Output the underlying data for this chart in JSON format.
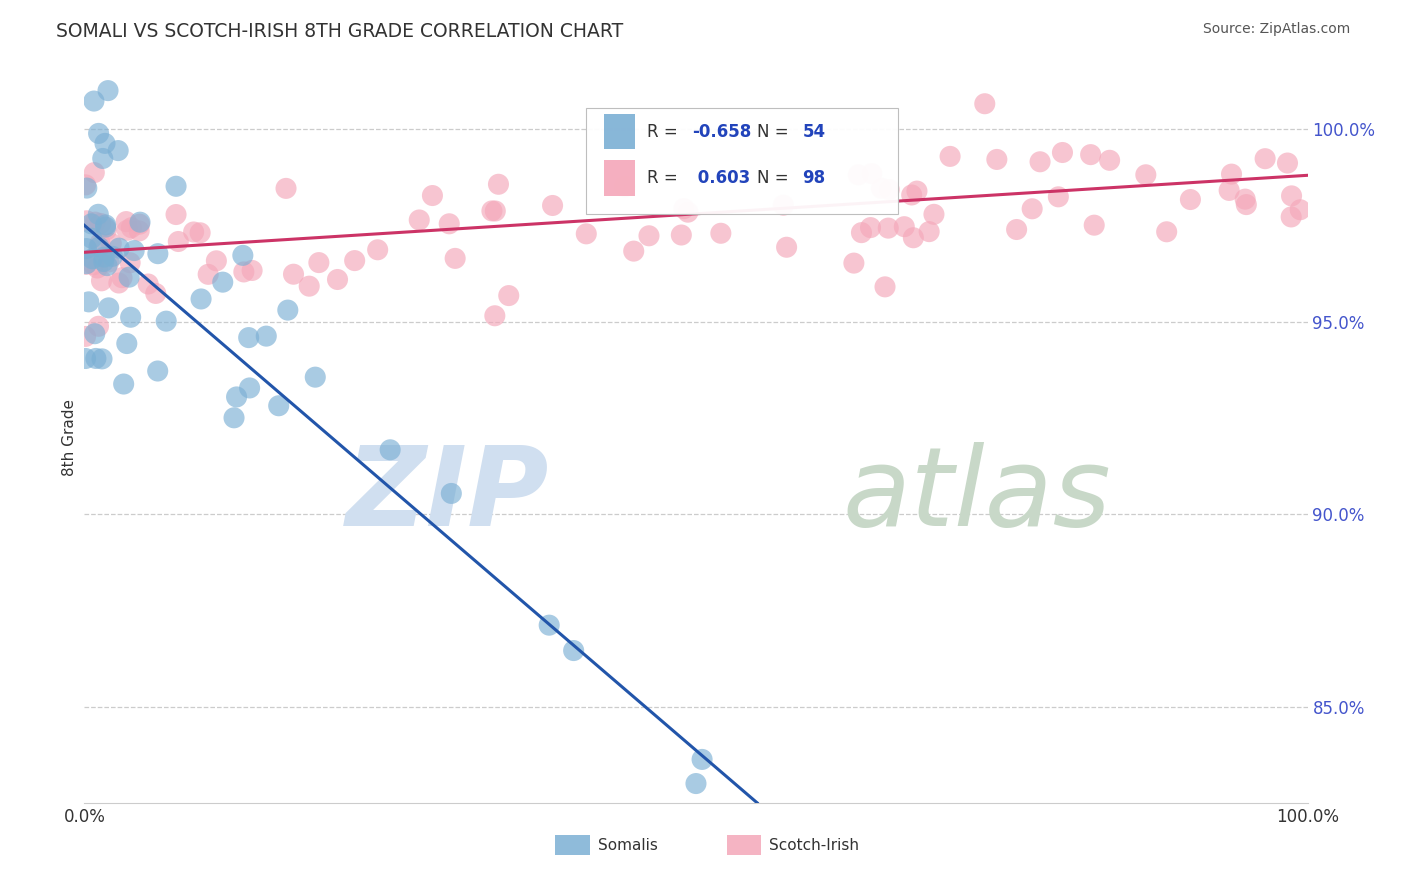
{
  "title": "SOMALI VS SCOTCH-IRISH 8TH GRADE CORRELATION CHART",
  "source": "Source: ZipAtlas.com",
  "ylabel": "8th Grade",
  "ytick_vals": [
    85.0,
    90.0,
    95.0,
    100.0
  ],
  "ytick_labels": [
    "85.0%",
    "90.0%",
    "95.0%",
    "100.0%"
  ],
  "xlim": [
    0.0,
    100.0
  ],
  "ylim": [
    82.5,
    101.5
  ],
  "somali_R": -0.658,
  "somali_N": 54,
  "scotch_irish_R": 0.603,
  "scotch_irish_N": 98,
  "somali_color": "#7BAFD4",
  "scotch_irish_color": "#F4A7B9",
  "somali_line_color": "#2255AA",
  "scotch_irish_line_color": "#CC3366",
  "background_color": "#FFFFFF",
  "grid_color": "#CCCCCC",
  "title_color": "#333333",
  "tick_color": "#4455CC",
  "watermark_zip_color": "#D0DFF0",
  "watermark_atlas_color": "#C8D8C8",
  "somali_line_x0": 0,
  "somali_line_y0": 97.5,
  "somali_line_x1": 55,
  "somali_line_y1": 82.5,
  "scotch_line_x0": 0,
  "scotch_line_y0": 96.8,
  "scotch_line_x1": 100,
  "scotch_line_y1": 98.8,
  "legend_R_color": "#2244BB",
  "legend_N_color": "#222222"
}
